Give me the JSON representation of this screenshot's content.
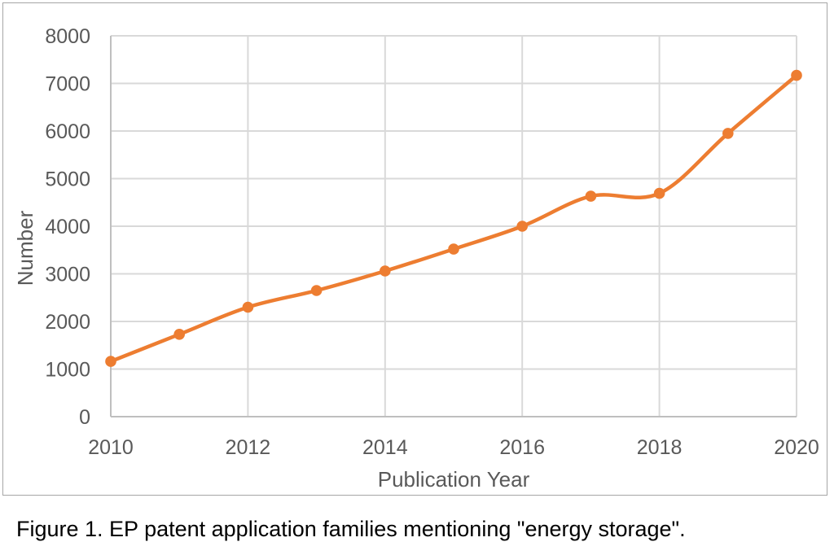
{
  "figure": {
    "caption": "Figure 1. EP patent application families mentioning \"energy storage\"."
  },
  "chart_data": {
    "type": "line",
    "title": "",
    "xlabel": "Publication Year",
    "ylabel": "Number",
    "categories": [
      2010,
      2011,
      2012,
      2013,
      2014,
      2015,
      2016,
      2017,
      2018,
      2019,
      2020
    ],
    "values": [
      1160,
      1730,
      2300,
      2650,
      3060,
      3520,
      4000,
      4630,
      4690,
      5950,
      7170
    ],
    "ylim": [
      0,
      8000
    ],
    "y_tick_interval": 1000,
    "x_tick_interval": 2,
    "grid": true,
    "legend": "none",
    "smoothed_line": true,
    "marker": "circle",
    "colors": {
      "series": "#ED7D31",
      "gridline": "#D9D9D9",
      "axis_line": "#BFBFBF",
      "tick_label": "#595959",
      "axis_title": "#595959",
      "caption": "#000000",
      "figure_border": "#A6A6A6",
      "background": "#FFFFFF"
    }
  }
}
